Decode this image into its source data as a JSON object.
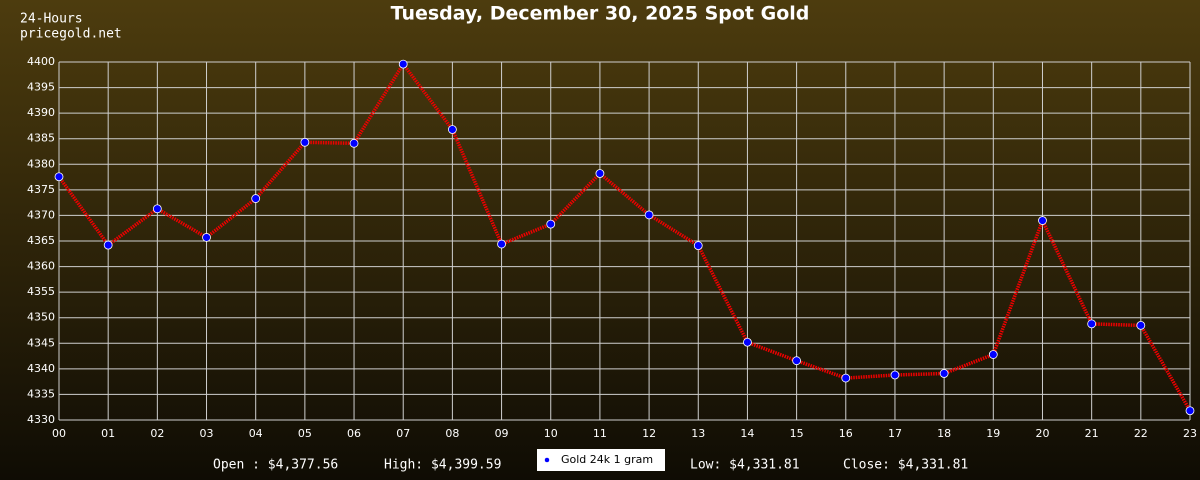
{
  "chart_data": {
    "type": "line",
    "title": "Tuesday, December 30, 2025 Spot Gold",
    "header": [
      "24-Hours",
      "pricegold.net"
    ],
    "categories": [
      "00",
      "01",
      "02",
      "03",
      "04",
      "05",
      "06",
      "07",
      "08",
      "09",
      "10",
      "11",
      "12",
      "13",
      "14",
      "15",
      "16",
      "17",
      "18",
      "19",
      "20",
      "21",
      "22",
      "23"
    ],
    "series": [
      {
        "name": "Gold 24k 1 gram",
        "color": "#ee0000",
        "marker_color": "#0000ff",
        "values": [
          4377.56,
          4364.2,
          4371.3,
          4365.7,
          4373.3,
          4384.3,
          4384.1,
          4399.59,
          4386.8,
          4364.4,
          4368.3,
          4378.2,
          4370.1,
          4364.1,
          4345.2,
          4341.6,
          4338.2,
          4338.8,
          4339.1,
          4342.8,
          4369.0,
          4348.8,
          4348.5,
          4331.81
        ]
      }
    ],
    "ylim": [
      4330,
      4400
    ],
    "yticks": [
      4330,
      4335,
      4340,
      4345,
      4350,
      4355,
      4360,
      4365,
      4370,
      4375,
      4380,
      4385,
      4390,
      4395,
      4400
    ],
    "grid": true,
    "stats": [
      "Open : $4,377.56",
      "High: $4,399.59",
      "Low: $4,331.81",
      "Close: $4,331.81"
    ]
  }
}
